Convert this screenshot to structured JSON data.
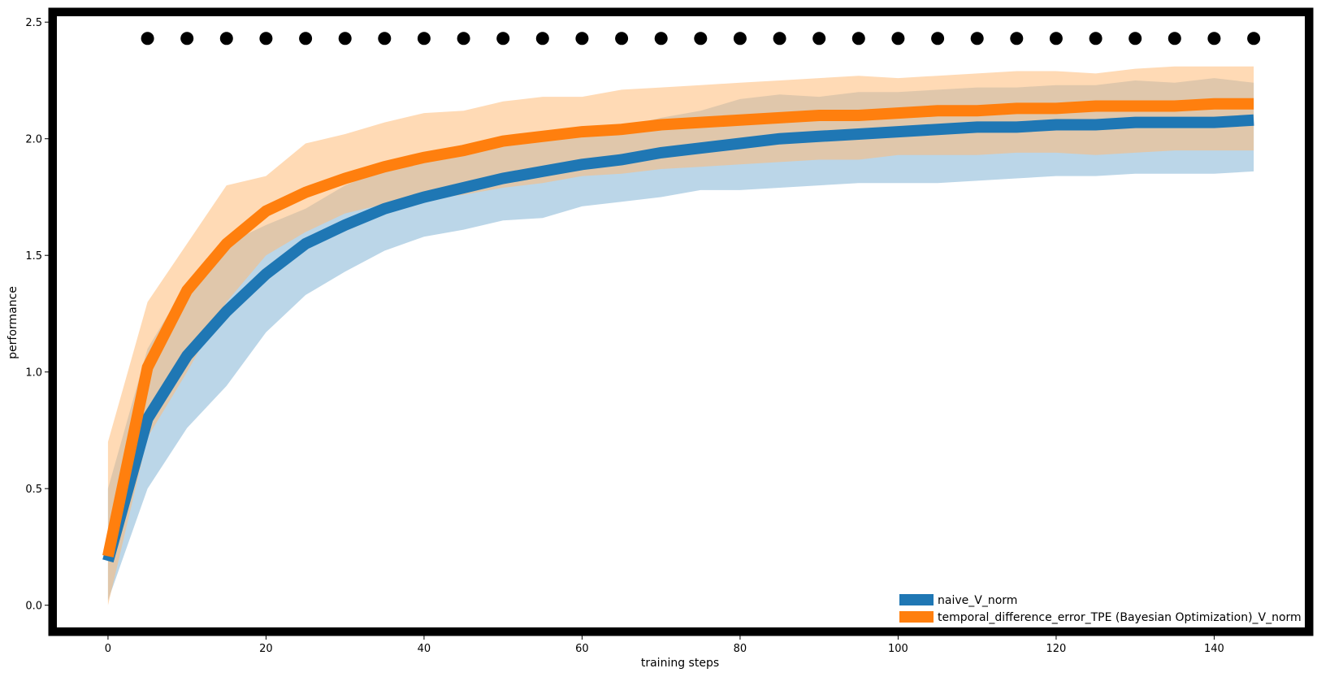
{
  "chart_data": {
    "type": "line",
    "title": "",
    "xlabel": "training steps",
    "ylabel": "performance",
    "xlim": [
      -7.5,
      152.5
    ],
    "ylim": [
      -0.13,
      2.56
    ],
    "xticks": [
      0,
      20,
      40,
      60,
      80,
      100,
      120,
      140
    ],
    "yticks": [
      0.0,
      0.5,
      1.0,
      1.5,
      2.0,
      2.5
    ],
    "ytick_labels": [
      "0.0",
      "0.5",
      "1.0",
      "1.5",
      "2.0",
      "2.5"
    ],
    "grid": false,
    "legend_position": "lower-right",
    "x": [
      0,
      5,
      10,
      15,
      20,
      25,
      30,
      35,
      40,
      45,
      50,
      55,
      60,
      65,
      70,
      75,
      80,
      85,
      90,
      95,
      100,
      105,
      110,
      115,
      120,
      125,
      130,
      135,
      140,
      145
    ],
    "series": [
      {
        "name": "naive_V_norm",
        "color": "#1f77b4",
        "band_color": "#1f77b4",
        "mean": [
          0.19,
          0.8,
          1.07,
          1.26,
          1.42,
          1.55,
          1.63,
          1.7,
          1.75,
          1.79,
          1.83,
          1.86,
          1.89,
          1.91,
          1.94,
          1.96,
          1.98,
          2.0,
          2.01,
          2.02,
          2.03,
          2.04,
          2.05,
          2.05,
          2.06,
          2.06,
          2.07,
          2.07,
          2.07,
          2.08
        ],
        "upper": [
          0.5,
          1.1,
          1.38,
          1.55,
          1.63,
          1.7,
          1.8,
          1.87,
          1.92,
          1.95,
          1.98,
          2.0,
          2.03,
          2.05,
          2.09,
          2.12,
          2.17,
          2.19,
          2.18,
          2.2,
          2.2,
          2.21,
          2.22,
          2.22,
          2.23,
          2.23,
          2.25,
          2.24,
          2.26,
          2.24
        ],
        "lower": [
          0.02,
          0.5,
          0.76,
          0.94,
          1.17,
          1.33,
          1.43,
          1.52,
          1.58,
          1.61,
          1.65,
          1.66,
          1.71,
          1.73,
          1.75,
          1.78,
          1.78,
          1.79,
          1.8,
          1.81,
          1.81,
          1.81,
          1.82,
          1.83,
          1.84,
          1.84,
          1.85,
          1.85,
          1.85,
          1.86
        ]
      },
      {
        "name": "temporal_difference_error_TPE (Bayesian Optimization)_V_norm",
        "color": "#ff7f0e",
        "band_color": "#ffbb78",
        "mean": [
          0.21,
          1.02,
          1.35,
          1.55,
          1.69,
          1.77,
          1.83,
          1.88,
          1.92,
          1.95,
          1.99,
          2.01,
          2.03,
          2.04,
          2.06,
          2.07,
          2.08,
          2.09,
          2.1,
          2.1,
          2.11,
          2.12,
          2.12,
          2.13,
          2.13,
          2.14,
          2.14,
          2.14,
          2.15,
          2.15
        ],
        "upper": [
          0.7,
          1.3,
          1.55,
          1.8,
          1.84,
          1.98,
          2.02,
          2.07,
          2.11,
          2.12,
          2.16,
          2.18,
          2.18,
          2.21,
          2.22,
          2.23,
          2.24,
          2.25,
          2.26,
          2.27,
          2.26,
          2.27,
          2.28,
          2.29,
          2.29,
          2.28,
          2.3,
          2.31,
          2.31,
          2.31
        ],
        "lower": [
          0.0,
          0.72,
          1.0,
          1.3,
          1.5,
          1.6,
          1.68,
          1.72,
          1.74,
          1.76,
          1.79,
          1.81,
          1.84,
          1.85,
          1.87,
          1.88,
          1.89,
          1.9,
          1.91,
          1.91,
          1.93,
          1.93,
          1.93,
          1.94,
          1.94,
          1.93,
          1.94,
          1.95,
          1.95,
          1.95
        ]
      }
    ],
    "markers": {
      "color": "#000000",
      "y": 2.43,
      "x": [
        5,
        10,
        15,
        20,
        25,
        30,
        35,
        40,
        45,
        50,
        55,
        60,
        65,
        70,
        75,
        80,
        85,
        90,
        95,
        100,
        105,
        110,
        115,
        120,
        125,
        130,
        135,
        140,
        145
      ]
    }
  }
}
